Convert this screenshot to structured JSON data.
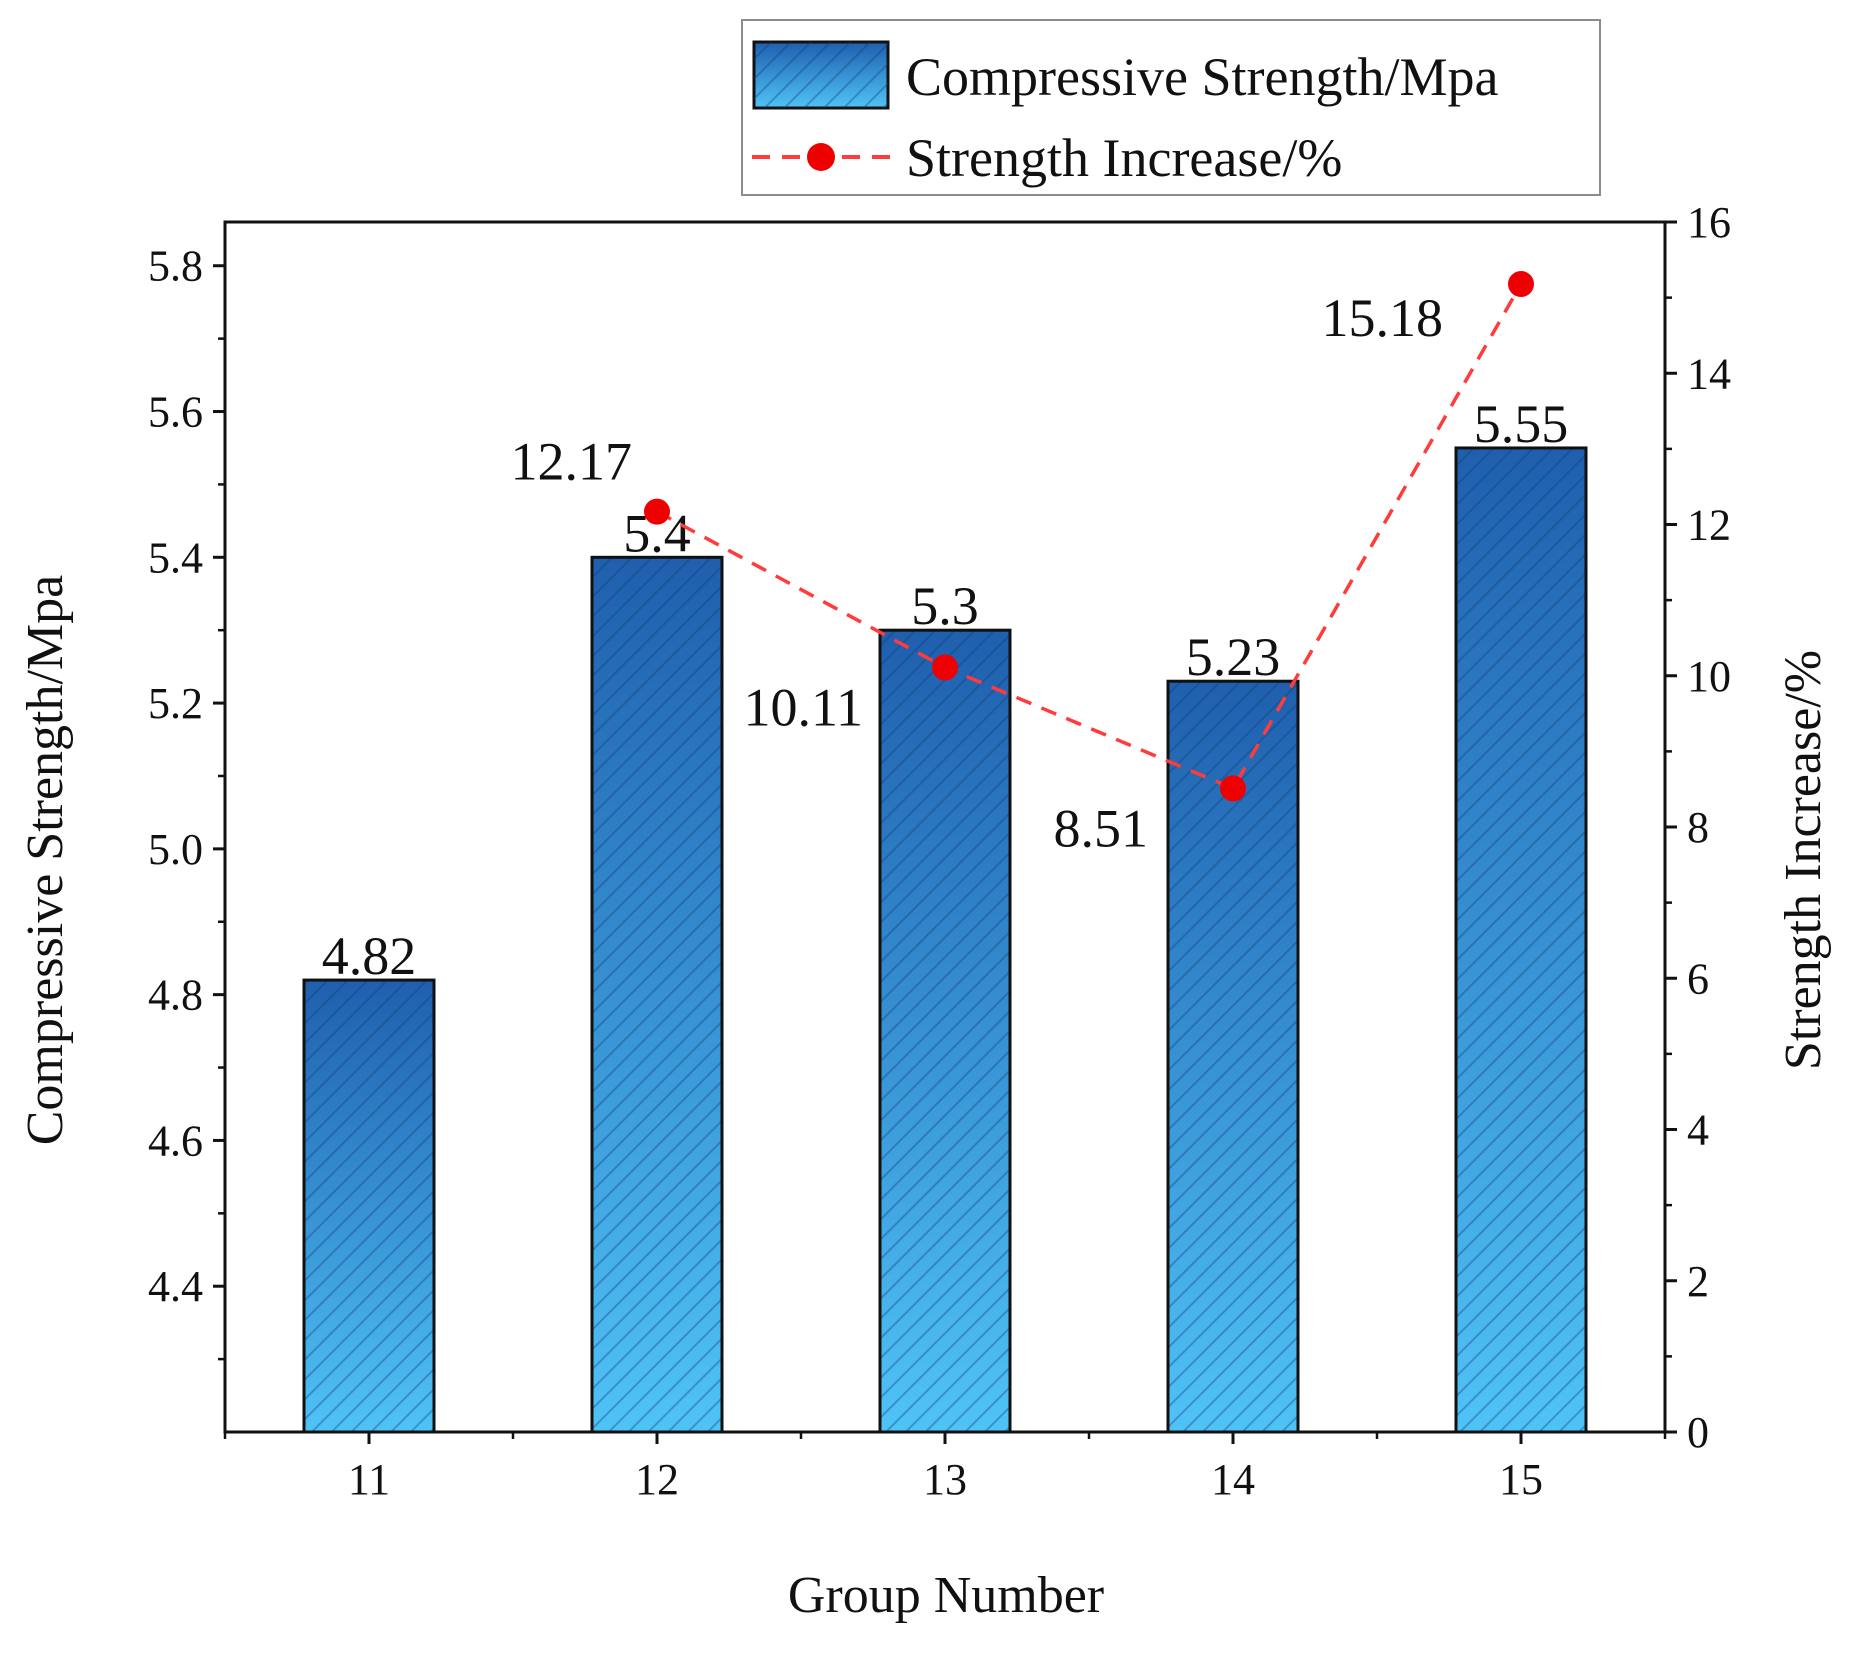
{
  "chart_data": {
    "type": "bar",
    "categories": [
      "11",
      "12",
      "13",
      "14",
      "15"
    ],
    "series": [
      {
        "name": "Compressive Strength/Mpa",
        "kind": "bar",
        "axis": "left",
        "values": [
          4.82,
          5.4,
          5.3,
          5.23,
          5.55
        ],
        "labels": [
          "4.82",
          "5.4",
          "5.3",
          "5.23",
          "5.55"
        ]
      },
      {
        "name": "Strength Increase/%",
        "kind": "line",
        "axis": "right",
        "style": "dashed",
        "values": [
          null,
          12.17,
          10.11,
          8.51,
          15.18
        ],
        "labels": [
          "",
          "12.17",
          "10.11",
          "8.51",
          "15.18"
        ]
      }
    ],
    "xlabel": "Group Number",
    "ylabel": "Compressive Strength/Mpa",
    "y2label": "Strength Increase/%",
    "ylim": [
      4.2,
      5.86
    ],
    "y2lim": [
      0,
      16
    ],
    "yticks": [
      "4.4",
      "4.6",
      "4.8",
      "5.0",
      "5.2",
      "5.4",
      "5.6",
      "5.8"
    ],
    "y2ticks": [
      "0",
      "2",
      "4",
      "6",
      "8",
      "10",
      "12",
      "14",
      "16"
    ],
    "legend_position": "top-right",
    "grid": false
  },
  "colors": {
    "bar_top": "#1f5fae",
    "bar_bottom": "#4fc3f7",
    "bar_stripe": "#0d3d73",
    "line": "#ff3b3b",
    "point": "#ee0000",
    "axis": "#111111"
  }
}
